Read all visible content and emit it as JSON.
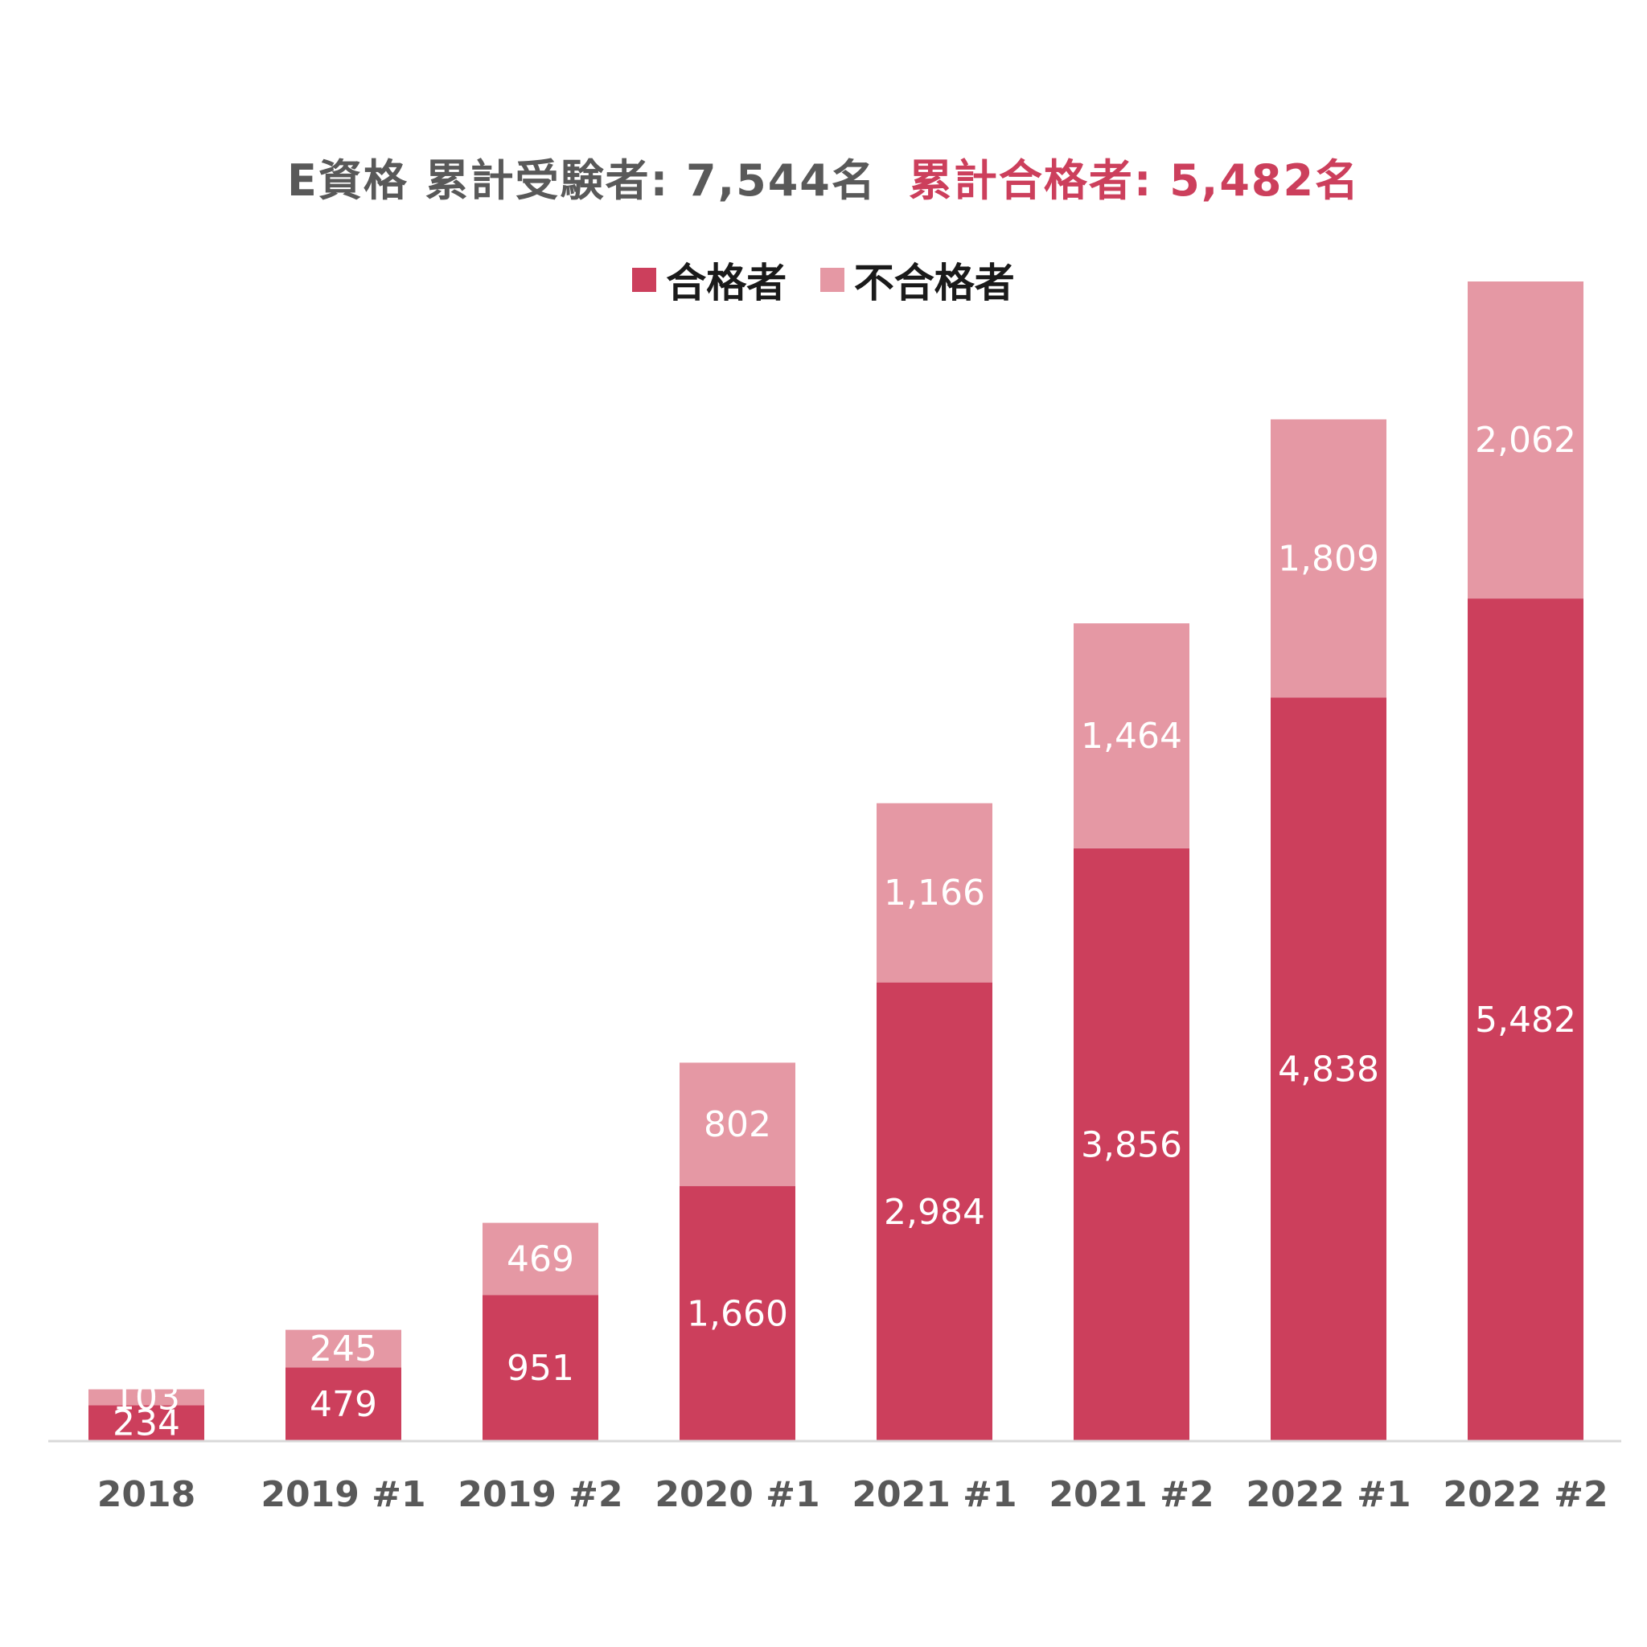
{
  "title": {
    "main": "E資格 累計受験者: 7,544名",
    "accent": "累計合格者: 5,482名"
  },
  "colors": {
    "passed": "#cc3f5c",
    "failed": "#e598a4",
    "axis": "#d9d9d9"
  },
  "chart_data": {
    "type": "bar",
    "stacked": true,
    "categories": [
      "2018",
      "2019 #1",
      "2019 #2",
      "2020 #1",
      "2021 #1",
      "2021 #2",
      "2022 #1",
      "2022 #2"
    ],
    "series": [
      {
        "name": "合格者",
        "values": [
          234,
          479,
          951,
          1660,
          2984,
          3856,
          4838,
          5482
        ],
        "labels": [
          "234",
          "479",
          "951",
          "1,660",
          "2,984",
          "3,856",
          "4,838",
          "5,482"
        ]
      },
      {
        "name": "不合格者",
        "values": [
          103,
          245,
          469,
          802,
          1166,
          1464,
          1809,
          2062
        ],
        "labels": [
          "103",
          "245",
          "469",
          "802",
          "1,166",
          "1,464",
          "1,809",
          "2,062"
        ]
      }
    ],
    "ylim": [
      0,
      7544
    ],
    "grid": false,
    "legend_position": "top"
  }
}
